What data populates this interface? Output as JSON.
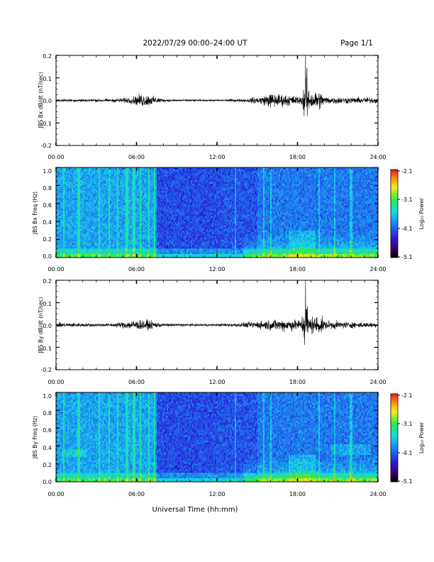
{
  "header": {
    "title": "2022/07/29  00:00–24:00 UT",
    "page_label": "Page 1/1"
  },
  "xaxis": {
    "title": "Universal Time (hh:mm)",
    "ticks": [
      "00:00",
      "06:00",
      "12:00",
      "18:00",
      "24:00"
    ]
  },
  "colorbar": {
    "label": "Log₁₀ Power",
    "ticks": [
      "-2.1",
      "-3.1",
      "-4.1",
      "-5.1"
    ]
  },
  "chart_data": [
    {
      "type": "line",
      "ylabel": "JBS Bx dB/dt (nT/sec)",
      "ylim": [
        -0.2,
        0.2
      ],
      "yticks": [
        "0.2",
        "0.1",
        "0.0",
        "-0.1",
        "-0.2"
      ],
      "xlim_hours": [
        0,
        24
      ],
      "series": [
        {
          "x_hours": [
            0,
            2,
            4,
            5.5,
            6.5,
            8,
            10,
            12,
            14,
            15.5,
            16,
            18.3,
            18.6,
            20,
            22,
            24
          ],
          "envelope": [
            0.008,
            0.01,
            0.009,
            0.02,
            0.045,
            0.01,
            0.006,
            0.006,
            0.01,
            0.03,
            0.05,
            0.025,
            0.2,
            0.025,
            0.02,
            0.02
          ]
        }
      ]
    },
    {
      "type": "heatmap",
      "ylabel": "JBS Bx Freq (Hz)",
      "ylim": [
        0.0,
        1.0
      ],
      "yticks": [
        "1.0",
        "0.8",
        "0.6",
        "0.4",
        "0.2",
        "0.0"
      ],
      "xlim_hours": [
        0,
        24
      ],
      "color_range_log10": [
        -5.1,
        -2.1
      ]
    },
    {
      "type": "line",
      "ylabel": "JBS By dB/dt (nT/sec)",
      "ylim": [
        -0.2,
        0.2
      ],
      "yticks": [
        "0.2",
        "0.1",
        "0.0",
        "-0.1",
        "-0.2"
      ],
      "xlim_hours": [
        0,
        24
      ],
      "series": [
        {
          "x_hours": [
            0,
            2,
            4,
            5.7,
            6.6,
            8,
            10,
            12,
            14,
            15.5,
            17,
            18.3,
            18.6,
            20,
            22,
            24
          ],
          "envelope": [
            0.015,
            0.012,
            0.01,
            0.03,
            0.035,
            0.01,
            0.008,
            0.008,
            0.015,
            0.03,
            0.04,
            0.035,
            0.2,
            0.03,
            0.02,
            0.015
          ]
        }
      ]
    },
    {
      "type": "heatmap",
      "ylabel": "JBS By Freq (Hz)",
      "ylim": [
        0.0,
        1.0
      ],
      "yticks": [
        "1.0",
        "0.8",
        "0.6",
        "0.4",
        "0.2",
        "0.0"
      ],
      "xlim_hours": [
        0,
        24
      ],
      "color_range_log10": [
        -5.1,
        -2.1
      ]
    }
  ]
}
